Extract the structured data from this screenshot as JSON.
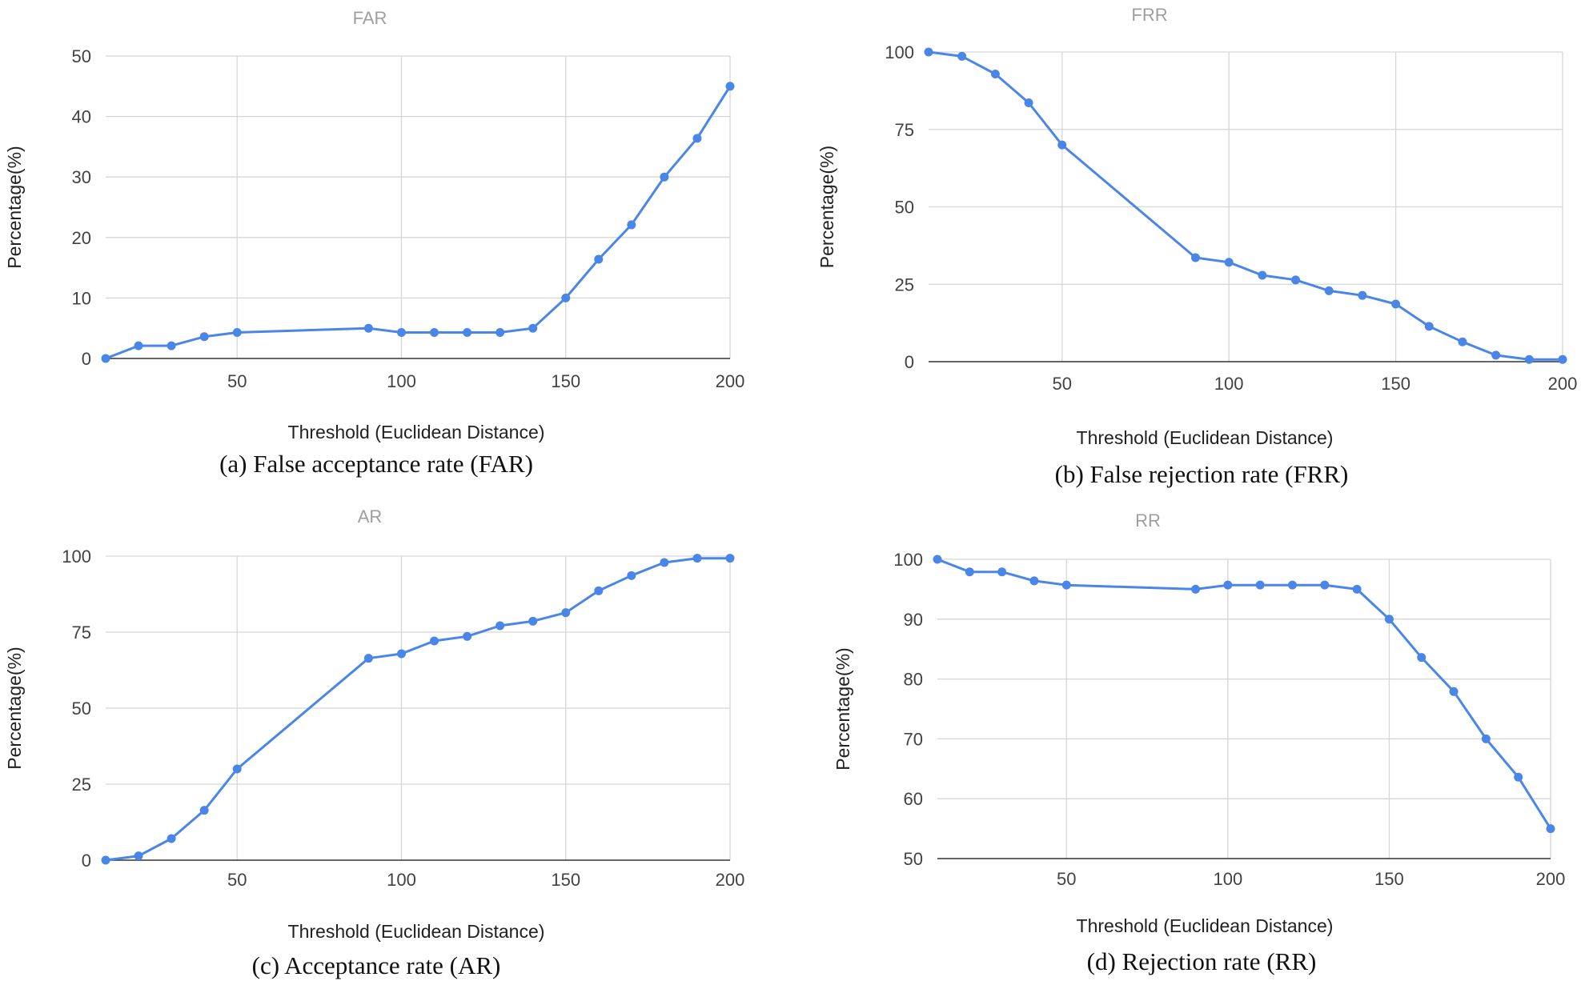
{
  "chart_data": [
    {
      "type": "line",
      "title": "FAR",
      "xlabel": "Threshold (Euclidean Distance)",
      "ylabel": "Percentage(%)",
      "caption": "(a) False acceptance rate (FAR)",
      "xlim": [
        10,
        200
      ],
      "ylim": [
        0,
        50
      ],
      "xticks": [
        50,
        100,
        150,
        200
      ],
      "yticks": [
        0,
        10,
        20,
        30,
        40,
        50
      ],
      "grid": true,
      "color": "#4a86e8",
      "x": [
        10,
        20,
        30,
        40,
        50,
        90,
        100,
        110,
        120,
        130,
        140,
        150,
        160,
        170,
        180,
        190,
        200
      ],
      "y": [
        0,
        2.1,
        2.1,
        3.6,
        4.3,
        5.0,
        4.3,
        4.3,
        4.3,
        4.3,
        5.0,
        10.0,
        16.4,
        22.1,
        30.0,
        36.4,
        45.0
      ]
    },
    {
      "type": "line",
      "title": "FRR",
      "xlabel": "Threshold (Euclidean Distance)",
      "ylabel": "Percentage(%)",
      "caption": "(b) False rejection rate (FRR)",
      "xlim": [
        10,
        200
      ],
      "ylim": [
        0,
        100
      ],
      "xticks": [
        50,
        100,
        150,
        200
      ],
      "yticks": [
        0,
        25,
        50,
        75,
        100
      ],
      "grid": true,
      "color": "#4a86e8",
      "x": [
        10,
        20,
        30,
        40,
        50,
        90,
        100,
        110,
        120,
        130,
        140,
        150,
        160,
        170,
        180,
        190,
        200
      ],
      "y": [
        100,
        98.6,
        92.9,
        83.6,
        70.0,
        33.6,
        32.1,
        27.9,
        26.4,
        22.9,
        21.4,
        18.6,
        11.4,
        6.4,
        2.1,
        0.7,
        0.7
      ]
    },
    {
      "type": "line",
      "title": "AR",
      "xlabel": "Threshold (Euclidean Distance)",
      "ylabel": "Percentage(%)",
      "caption": "(c) Acceptance rate (AR)",
      "xlim": [
        10,
        200
      ],
      "ylim": [
        0,
        100
      ],
      "xticks": [
        50,
        100,
        150,
        200
      ],
      "yticks": [
        0,
        25,
        50,
        75,
        100
      ],
      "grid": true,
      "color": "#4a86e8",
      "x": [
        10,
        20,
        30,
        40,
        50,
        90,
        100,
        110,
        120,
        130,
        140,
        150,
        160,
        170,
        180,
        190,
        200
      ],
      "y": [
        0,
        1.4,
        7.1,
        16.4,
        30.0,
        66.4,
        67.9,
        72.1,
        73.6,
        77.1,
        78.6,
        81.4,
        88.6,
        93.6,
        97.9,
        99.3,
        99.3
      ]
    },
    {
      "type": "line",
      "title": "RR",
      "xlabel": "Threshold (Euclidean Distance)",
      "ylabel": "Percentage(%)",
      "caption": "(d) Rejection rate (RR)",
      "xlim": [
        10,
        200
      ],
      "ylim": [
        50,
        100
      ],
      "xticks": [
        50,
        100,
        150,
        200
      ],
      "yticks": [
        50,
        60,
        70,
        80,
        90,
        100
      ],
      "grid": true,
      "color": "#4a86e8",
      "x": [
        10,
        20,
        30,
        40,
        50,
        90,
        100,
        110,
        120,
        130,
        140,
        150,
        160,
        170,
        180,
        190,
        200
      ],
      "y": [
        100,
        97.9,
        97.9,
        96.4,
        95.7,
        95.0,
        95.7,
        95.7,
        95.7,
        95.7,
        95.0,
        90.0,
        83.6,
        77.9,
        70.0,
        63.6,
        55.0
      ]
    }
  ]
}
